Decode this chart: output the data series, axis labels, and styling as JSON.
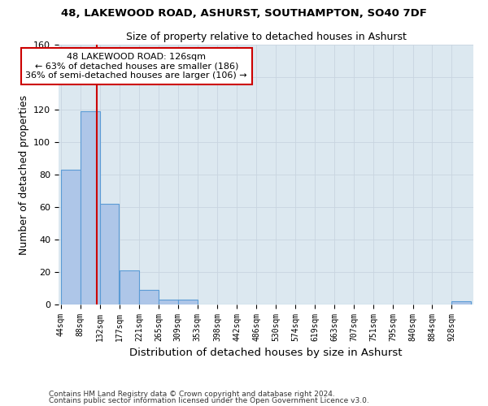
{
  "title1": "48, LAKEWOOD ROAD, ASHURST, SOUTHAMPTON, SO40 7DF",
  "title2": "Size of property relative to detached houses in Ashurst",
  "xlabel": "Distribution of detached houses by size in Ashurst",
  "ylabel": "Number of detached properties",
  "bar_edges": [
    44,
    88,
    132,
    177,
    221,
    265,
    309,
    353,
    398,
    442,
    486,
    530,
    574,
    619,
    663,
    707,
    751,
    795,
    840,
    884,
    928
  ],
  "bar_heights": [
    83,
    119,
    62,
    21,
    9,
    3,
    3,
    0,
    0,
    0,
    0,
    0,
    0,
    0,
    0,
    0,
    0,
    0,
    0,
    0,
    2
  ],
  "bar_color": "#aec6e8",
  "bar_edgecolor": "#5b9bd5",
  "ylim": [
    0,
    160
  ],
  "yticks": [
    0,
    20,
    40,
    60,
    80,
    100,
    120,
    140,
    160
  ],
  "red_line_x": 126,
  "annotation_title": "48 LAKEWOOD ROAD: 126sqm",
  "annotation_line1": "← 63% of detached houses are smaller (186)",
  "annotation_line2": "36% of semi-detached houses are larger (106) →",
  "annotation_box_color": "#ffffff",
  "annotation_border_color": "#cc0000",
  "red_line_color": "#cc0000",
  "grid_color": "#c8d4e0",
  "background_color": "#dce8f0",
  "footer1": "Contains HM Land Registry data © Crown copyright and database right 2024.",
  "footer2": "Contains public sector information licensed under the Open Government Licence v3.0."
}
